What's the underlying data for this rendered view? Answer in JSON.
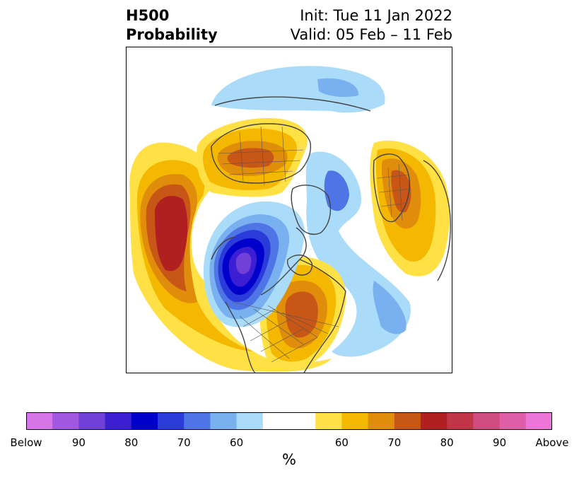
{
  "title": {
    "left_line1": "H500",
    "left_line2": "Probability",
    "right_line1": "Init: Tue 11 Jan 2022",
    "right_line2": "Valid: 05 Feb – 11 Feb"
  },
  "colorbar": {
    "colors": [
      "#d675e8",
      "#a157e0",
      "#7040d8",
      "#3c1fd2",
      "#0000cc",
      "#2a3bd9",
      "#4f74e5",
      "#78b0f0",
      "#aadcfa",
      "#ffffff",
      "#ffffff",
      "#ffe045",
      "#f5b800",
      "#e08d0c",
      "#c85717",
      "#b02020",
      "#c23549",
      "#d04b80",
      "#de5fa8",
      "#ec76d8"
    ],
    "tick_labels": [
      "Below",
      "90",
      "80",
      "70",
      "60",
      "60",
      "70",
      "80",
      "90",
      "Above"
    ],
    "unit": "%"
  },
  "map": {
    "colors": {
      "below_light": "#aadcfa",
      "below_med": "#78b0f0",
      "below_blue": "#4f74e5",
      "below_deep": "#2a3bd9",
      "below_navy": "#0000cc",
      "below_indigo": "#3c1fd2",
      "below_purple": "#7040d8",
      "above_yellow": "#ffe045",
      "above_gold": "#f5b800",
      "above_orange": "#e08d0c",
      "above_burnt": "#c85717",
      "above_red": "#b02020",
      "coast": "#444444"
    }
  }
}
